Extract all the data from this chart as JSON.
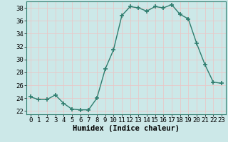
{
  "x": [
    0,
    1,
    2,
    3,
    4,
    5,
    6,
    7,
    8,
    9,
    10,
    11,
    12,
    13,
    14,
    15,
    16,
    17,
    18,
    19,
    20,
    21,
    22,
    23
  ],
  "y": [
    24.2,
    23.8,
    23.8,
    24.5,
    23.2,
    22.3,
    22.2,
    22.2,
    24.0,
    28.5,
    31.5,
    36.8,
    38.2,
    38.0,
    37.5,
    38.2,
    38.0,
    38.5,
    37.0,
    36.3,
    32.5,
    29.2,
    26.5,
    26.3
  ],
  "line_color": "#2e7d6e",
  "marker": "+",
  "marker_size": 4,
  "bg_color": "#cce8e8",
  "grid_color": "#e8c8c8",
  "xlabel": "Humidex (Indice chaleur)",
  "ylim": [
    21.5,
    39.0
  ],
  "yticks": [
    22,
    24,
    26,
    28,
    30,
    32,
    34,
    36,
    38
  ],
  "xlim": [
    -0.5,
    23.5
  ],
  "xticks": [
    0,
    1,
    2,
    3,
    4,
    5,
    6,
    7,
    8,
    9,
    10,
    11,
    12,
    13,
    14,
    15,
    16,
    17,
    18,
    19,
    20,
    21,
    22,
    23
  ],
  "xlabel_fontsize": 7.5,
  "tick_fontsize": 6.5,
  "line_width": 1.0,
  "marker_color": "#2e7d6e"
}
